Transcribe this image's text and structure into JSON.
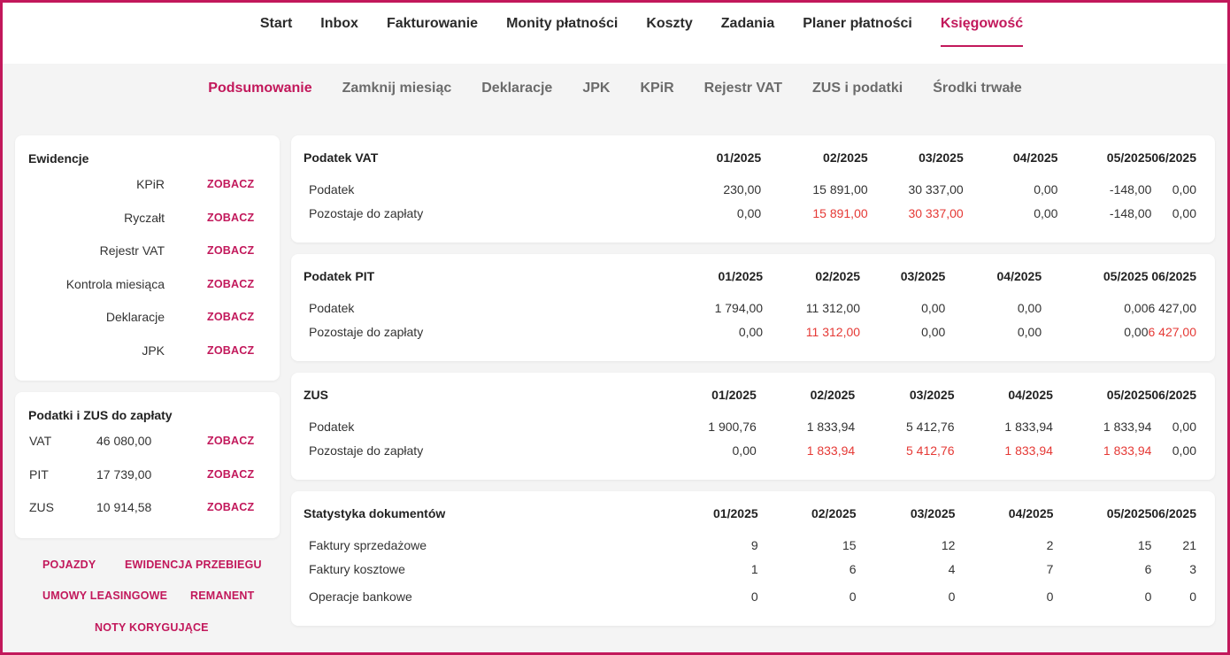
{
  "top_nav": {
    "items": [
      "Start",
      "Inbox",
      "Fakturowanie",
      "Monity płatności",
      "Koszty",
      "Zadania",
      "Planer płatności",
      "Księgowość"
    ],
    "active": "Księgowość"
  },
  "sub_nav": {
    "items": [
      "Podsumowanie",
      "Zamknij miesiąc",
      "Deklaracje",
      "JPK",
      "KPiR",
      "Rejestr VAT",
      "ZUS i podatki",
      "Środki trwałe"
    ],
    "active": "Podsumowanie"
  },
  "ewidencje": {
    "title": "Ewidencje",
    "rows": [
      {
        "label": "KPiR",
        "link": "ZOBACZ"
      },
      {
        "label": "Ryczałt",
        "link": "ZOBACZ"
      },
      {
        "label": "Rejestr VAT",
        "link": "ZOBACZ"
      },
      {
        "label": "Kontrola miesiąca",
        "link": "ZOBACZ"
      },
      {
        "label": "Deklaracje",
        "link": "ZOBACZ"
      },
      {
        "label": "JPK",
        "link": "ZOBACZ"
      }
    ]
  },
  "podatki_zus": {
    "title": "Podatki i ZUS do zapłaty",
    "rows": [
      {
        "name": "VAT",
        "amount": "46 080,00",
        "link": "ZOBACZ"
      },
      {
        "name": "PIT",
        "amount": "17 739,00",
        "link": "ZOBACZ"
      },
      {
        "name": "ZUS",
        "amount": "10 914,58",
        "link": "ZOBACZ"
      }
    ]
  },
  "bottom_links": [
    "POJAZDY",
    "EWIDENCJA PRZEBIEGU",
    "UMOWY LEASINGOWE",
    "REMANENT",
    "NOTY KORYGUJĄCE"
  ],
  "tables": [
    {
      "title": "Podatek VAT",
      "months": [
        "01/2025",
        "02/2025",
        "03/2025",
        "04/2025",
        "05/2025",
        "06/2025"
      ],
      "rows": [
        {
          "label": "Podatek",
          "values": [
            "230,00",
            "15 891,00",
            "30 337,00",
            "0,00",
            "-148,00",
            "0,00"
          ],
          "red": [
            false,
            false,
            false,
            false,
            false,
            false
          ]
        },
        {
          "label": "Pozostaje do zapłaty",
          "values": [
            "0,00",
            "15 891,00",
            "30 337,00",
            "0,00",
            "-148,00",
            "0,00"
          ],
          "red": [
            false,
            true,
            true,
            false,
            false,
            false
          ]
        }
      ]
    },
    {
      "title": "Podatek PIT",
      "months": [
        "01/2025",
        "02/2025",
        "03/2025",
        "04/2025",
        "05/2025",
        "06/2025"
      ],
      "rows": [
        {
          "label": "Podatek",
          "values": [
            "1 794,00",
            "11 312,00",
            "0,00",
            "0,00",
            "0,00",
            "6 427,00"
          ],
          "red": [
            false,
            false,
            false,
            false,
            false,
            false
          ]
        },
        {
          "label": "Pozostaje do zapłaty",
          "values": [
            "0,00",
            "11 312,00",
            "0,00",
            "0,00",
            "0,00",
            "6 427,00"
          ],
          "red": [
            false,
            true,
            false,
            false,
            false,
            true
          ]
        }
      ]
    },
    {
      "title": "ZUS",
      "months": [
        "01/2025",
        "02/2025",
        "03/2025",
        "04/2025",
        "05/2025",
        "06/2025"
      ],
      "rows": [
        {
          "label": "Podatek",
          "values": [
            "1 900,76",
            "1 833,94",
            "5 412,76",
            "1 833,94",
            "1 833,94",
            "0,00"
          ],
          "red": [
            false,
            false,
            false,
            false,
            false,
            false
          ]
        },
        {
          "label": "Pozostaje do zapłaty",
          "values": [
            "0,00",
            "1 833,94",
            "5 412,76",
            "1 833,94",
            "1 833,94",
            "0,00"
          ],
          "red": [
            false,
            true,
            true,
            true,
            true,
            false
          ]
        }
      ]
    },
    {
      "title": "Statystyka dokumentów",
      "months": [
        "01/2025",
        "02/2025",
        "03/2025",
        "04/2025",
        "05/2025",
        "06/2025"
      ],
      "rows": [
        {
          "label": "Faktury sprzedażowe",
          "values": [
            "9",
            "15",
            "12",
            "2",
            "15",
            "21"
          ],
          "red": [
            false,
            false,
            false,
            false,
            false,
            false
          ]
        },
        {
          "label": "Faktury kosztowe",
          "values": [
            "1",
            "6",
            "4",
            "7",
            "6",
            "3"
          ],
          "red": [
            false,
            false,
            false,
            false,
            false,
            false
          ]
        },
        {
          "label": "Operacje bankowe",
          "values": [
            "0",
            "0",
            "0",
            "0",
            "0",
            "0"
          ],
          "red": [
            false,
            false,
            false,
            false,
            false,
            false
          ]
        }
      ]
    }
  ],
  "colors": {
    "accent": "#c2185b",
    "negative": "#e53935"
  }
}
